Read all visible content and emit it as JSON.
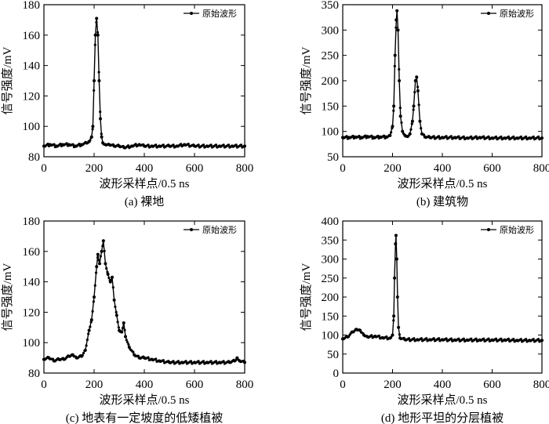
{
  "chart_data": [
    {
      "type": "line",
      "caption": "(a) 裸地",
      "xlabel": "波形采样点/0.5 ns",
      "ylabel": "信号强度/mV",
      "legend": "原始波形",
      "legend_position": "top-right",
      "xlim": [
        0,
        800
      ],
      "ylim": [
        80,
        180
      ],
      "xticks": [
        0,
        200,
        400,
        600,
        800
      ],
      "yticks": [
        80,
        100,
        120,
        140,
        160,
        180
      ],
      "grid": false,
      "series": [
        {
          "name": "原始波形",
          "x": [
            0,
            25,
            50,
            75,
            100,
            125,
            150,
            170,
            180,
            190,
            195,
            200,
            205,
            210,
            215,
            220,
            225,
            230,
            235,
            245,
            260,
            280,
            300,
            320,
            350,
            380,
            400,
            430,
            460,
            500,
            530,
            560,
            600,
            650,
            700,
            750,
            800
          ],
          "y": [
            87,
            88,
            87,
            88,
            88,
            87,
            88,
            89,
            90,
            93,
            100,
            130,
            160,
            171,
            160,
            130,
            105,
            93,
            89,
            88,
            88,
            87,
            87,
            86,
            87,
            88,
            87,
            87,
            87,
            87,
            87,
            88,
            87,
            87,
            87,
            87,
            87
          ]
        }
      ]
    },
    {
      "type": "line",
      "caption": "(b) 建筑物",
      "xlabel": "波形采样点/0.5 ns",
      "ylabel": "信号强度/mV",
      "legend": "原始波形",
      "legend_position": "top-right",
      "xlim": [
        0,
        800
      ],
      "ylim": [
        50,
        350
      ],
      "xticks": [
        0,
        200,
        400,
        600,
        800
      ],
      "yticks": [
        50,
        100,
        150,
        200,
        250,
        300,
        350
      ],
      "grid": false,
      "series": [
        {
          "name": "原始波形",
          "x": [
            0,
            25,
            50,
            75,
            100,
            125,
            150,
            175,
            190,
            200,
            205,
            210,
            215,
            218,
            222,
            227,
            232,
            240,
            250,
            260,
            270,
            280,
            285,
            292,
            297,
            302,
            310,
            318,
            330,
            350,
            400,
            450,
            500,
            550,
            600,
            650,
            700,
            750,
            800
          ],
          "y": [
            88,
            88,
            89,
            88,
            90,
            88,
            89,
            89,
            92,
            110,
            150,
            250,
            320,
            338,
            300,
            200,
            130,
            100,
            92,
            90,
            95,
            120,
            150,
            200,
            207,
            180,
            120,
            95,
            89,
            88,
            88,
            88,
            87,
            88,
            87,
            87,
            87,
            87,
            87
          ]
        }
      ]
    },
    {
      "type": "line",
      "caption": "(c) 地表有一定坡度的低矮植被",
      "xlabel": "波形采样点/0.5 ns",
      "ylabel": "信号强度/mV",
      "legend": "原始波形",
      "legend_position": "top-right",
      "xlim": [
        0,
        800
      ],
      "ylim": [
        80,
        180
      ],
      "xticks": [
        0,
        200,
        400,
        600,
        800
      ],
      "yticks": [
        80,
        100,
        120,
        140,
        160,
        180
      ],
      "grid": false,
      "series": [
        {
          "name": "原始波形",
          "x": [
            0,
            20,
            40,
            60,
            80,
            100,
            115,
            130,
            150,
            165,
            180,
            190,
            200,
            210,
            215,
            222,
            230,
            237,
            245,
            255,
            265,
            272,
            280,
            290,
            300,
            310,
            318,
            325,
            340,
            360,
            380,
            400,
            430,
            460,
            500,
            550,
            600,
            650,
            700,
            740,
            760,
            770,
            780,
            800
          ],
          "y": [
            89,
            90,
            88,
            89,
            89,
            91,
            92,
            90,
            91,
            95,
            108,
            115,
            130,
            150,
            158,
            152,
            160,
            167,
            152,
            145,
            140,
            143,
            128,
            118,
            108,
            107,
            113,
            104,
            97,
            92,
            90,
            90,
            89,
            88,
            87,
            87,
            87,
            87,
            87,
            87,
            88,
            90,
            88,
            87
          ]
        }
      ]
    },
    {
      "type": "line",
      "caption": "(d) 地形平坦的分层植被",
      "xlabel": "波形采样点/0.5 ns",
      "ylabel": "信号强度/mV",
      "legend": "原始波形",
      "legend_position": "top-right",
      "xlim": [
        0,
        800
      ],
      "ylim": [
        0,
        400
      ],
      "xticks": [
        0,
        200,
        400,
        600,
        800
      ],
      "yticks": [
        0,
        50,
        100,
        150,
        200,
        250,
        300,
        350,
        400
      ],
      "grid": false,
      "series": [
        {
          "name": "原始波形",
          "x": [
            0,
            20,
            40,
            55,
            70,
            85,
            100,
            130,
            160,
            190,
            200,
            205,
            208,
            212,
            214,
            217,
            220,
            224,
            230,
            250,
            300,
            350,
            400,
            450,
            500,
            550,
            600,
            650,
            700,
            750,
            800
          ],
          "y": [
            90,
            95,
            108,
            115,
            112,
            100,
            95,
            97,
            93,
            92,
            100,
            150,
            250,
            340,
            362,
            300,
            200,
            120,
            92,
            88,
            88,
            88,
            88,
            87,
            87,
            87,
            87,
            87,
            86,
            86,
            86
          ]
        }
      ]
    }
  ]
}
